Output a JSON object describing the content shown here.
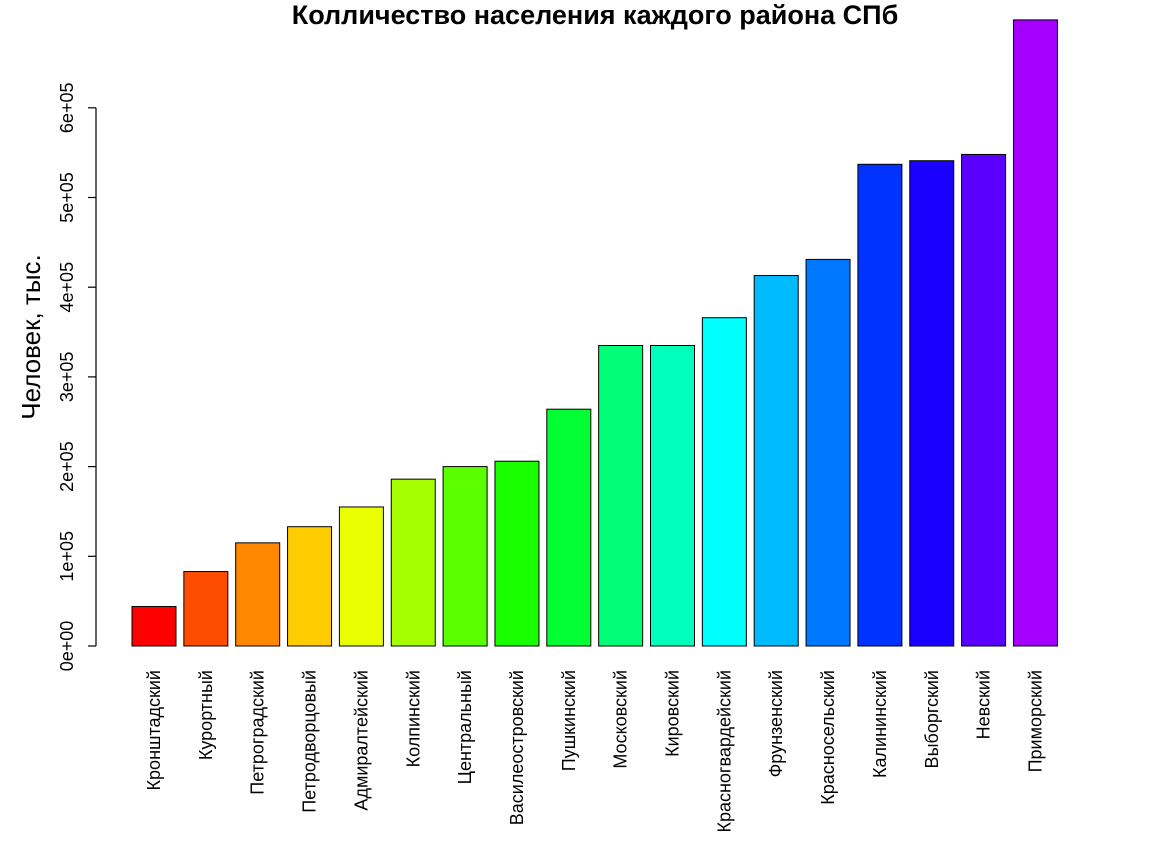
{
  "chart_data": {
    "type": "bar",
    "title": "Колличество населения каждого района СПб",
    "xlabel": "",
    "ylabel": "Человек, тыс.",
    "ylim": [
      0,
      700000
    ],
    "yticks": [
      0,
      100000,
      200000,
      300000,
      400000,
      500000,
      600000
    ],
    "ytick_labels": [
      "0e+00",
      "1e+05",
      "2e+05",
      "3e+05",
      "4e+05",
      "5e+05",
      "6e+05"
    ],
    "categories": [
      "Кронштадский",
      "Курортный",
      "Петроградский",
      "Петродворцовый",
      "Адмиралтейский",
      "Колпинский",
      "Центральный",
      "Василеостровский",
      "Пушкинский",
      "Московский",
      "Кировский",
      "Красногвардейский",
      "Фрунзенский",
      "Красносельский",
      "Калининский",
      "Выборгский",
      "Невский",
      "Приморский"
    ],
    "values": [
      44000,
      83000,
      115000,
      133000,
      155000,
      186000,
      200000,
      206000,
      264000,
      335000,
      335000,
      366000,
      413000,
      431000,
      537000,
      541000,
      548000,
      698000
    ],
    "colors": [
      "#FF0000",
      "#FF4D00",
      "#FF8800",
      "#FFCC00",
      "#EAFF00",
      "#A5FF00",
      "#5BFF00",
      "#1AFF00",
      "#00FF33",
      "#00FF77",
      "#00FFBB",
      "#00FFFF",
      "#00BBFF",
      "#0077FF",
      "#0033FF",
      "#1A00FF",
      "#5B00FF",
      "#A500FF"
    ],
    "grid": false,
    "legend": "none"
  }
}
